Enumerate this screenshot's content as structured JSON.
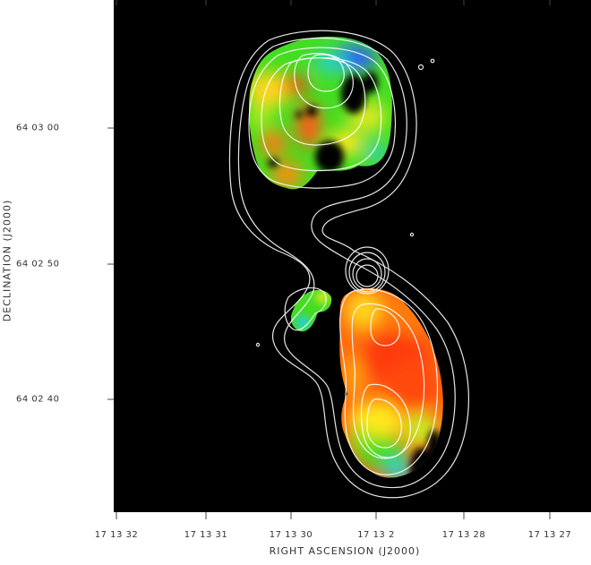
{
  "figure": {
    "xlabel": "RIGHT ASCENSION  (J2000)",
    "ylabel": "DECLINATION  (J2000)",
    "x_tick_labels": [
      "17 13 32",
      "17 13 31",
      "17 13 30",
      "17 13 2",
      "17 13 28",
      "17 13 27"
    ],
    "y_tick_labels": [
      "64 03 00",
      "64 02 50",
      "64 02 40"
    ]
  },
  "colors": {
    "background": "#000000",
    "contour": "#ffffff",
    "red": "#ff3b10",
    "orange": "#ff8a10",
    "yellow": "#ffe81a",
    "green": "#3de01a",
    "cyan": "#2ad0c8",
    "blue": "#2a5aff"
  }
}
